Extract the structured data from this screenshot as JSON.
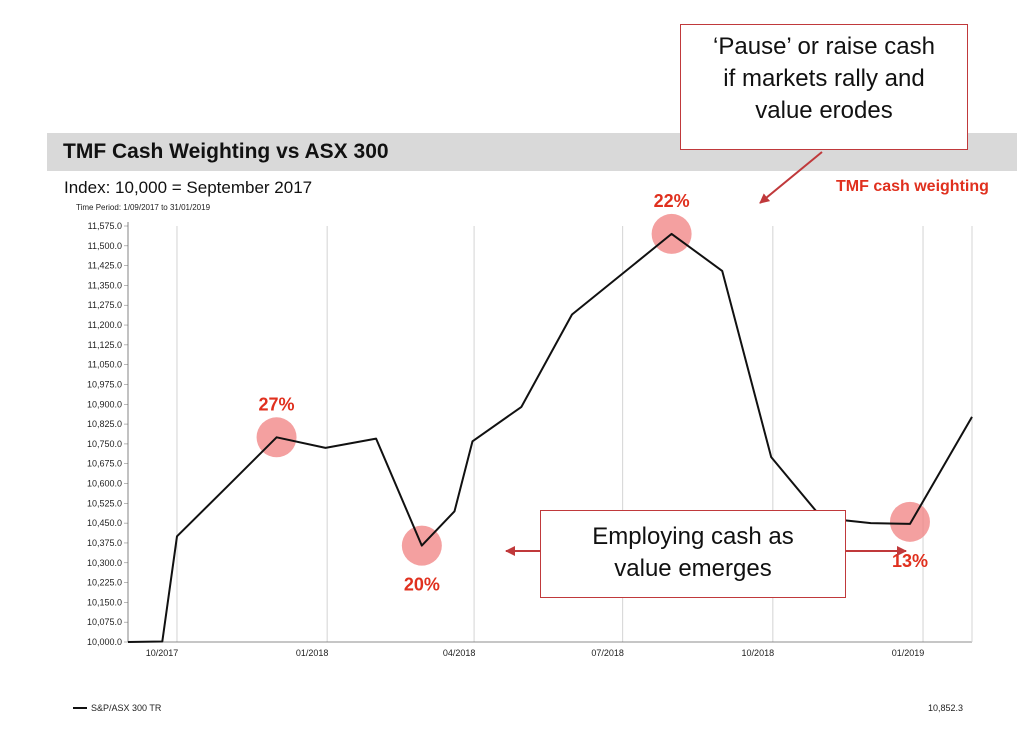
{
  "header": {
    "title": "TMF Cash Weighting vs ASX 300",
    "subtitle": "Index: 10,000 = September 2017",
    "series_label": "TMF cash weighting",
    "time_period": "Time Period: 1/09/2017 to 31/01/2019"
  },
  "callouts": {
    "top_lines": [
      "‘Pause’ or raise cash",
      "if markets rally and",
      "value erodes"
    ],
    "mid_lines": [
      "Employing cash as",
      "value emerges"
    ]
  },
  "legend": {
    "series_name": "S&P/ASX 300 TR",
    "last_value": "10,852.3"
  },
  "colors": {
    "line": "#111111",
    "accent": "#e0301e",
    "marker": "#f08080",
    "callout_border": "#c0393b",
    "title_bar": "#d9d9d9",
    "grid": "#d4d4d4"
  },
  "chart_data": {
    "type": "line",
    "title": "TMF Cash Weighting vs ASX 300",
    "ylim": [
      10000,
      11575
    ],
    "grid": true,
    "y_ticks": [
      "10,000.0",
      "10,075.0",
      "10,150.0",
      "10,225.0",
      "10,300.0",
      "10,375.0",
      "10,450.0",
      "10,525.0",
      "10,600.0",
      "10,675.0",
      "10,750.0",
      "10,825.0",
      "10,900.0",
      "10,975.0",
      "11,050.0",
      "11,125.0",
      "11,200.0",
      "11,275.0",
      "11,350.0",
      "11,425.0",
      "11,500.0",
      "11,575.0"
    ],
    "x_ticks": [
      {
        "label": "10/2017",
        "date": "2017-10-01"
      },
      {
        "label": "01/2018",
        "date": "2018-01-01"
      },
      {
        "label": "04/2018",
        "date": "2018-04-01"
      },
      {
        "label": "07/2018",
        "date": "2018-07-01"
      },
      {
        "label": "10/2018",
        "date": "2018-10-01"
      },
      {
        "label": "01/2019",
        "date": "2019-01-01"
      }
    ],
    "series": [
      {
        "name": "S&P/ASX 300 TR",
        "x": [
          "2017-09-01",
          "2017-09-22",
          "2017-10-01",
          "2017-11-01",
          "2017-12-01",
          "2017-12-31",
          "2018-01-31",
          "2018-02-28",
          "2018-03-20",
          "2018-03-31",
          "2018-04-30",
          "2018-05-31",
          "2018-06-30",
          "2018-07-31",
          "2018-08-31",
          "2018-09-30",
          "2018-10-31",
          "2018-11-30",
          "2018-12-24",
          "2019-01-31"
        ],
        "values": [
          10000,
          10002,
          10400,
          10590,
          10775,
          10735,
          10770,
          10365,
          10495,
          10760,
          10890,
          11240,
          11390,
          11545,
          11405,
          10700,
          10470,
          10450,
          10447,
          10852.3
        ]
      }
    ],
    "annotations": [
      {
        "label": "27%",
        "x": "2017-12-01",
        "y": 10775,
        "position": "above"
      },
      {
        "label": "20%",
        "x": "2018-02-28",
        "y": 10365,
        "position": "below"
      },
      {
        "label": "22%",
        "x": "2018-07-31",
        "y": 11545,
        "position": "above"
      },
      {
        "label": "13%",
        "x": "2018-12-24",
        "y": 10455,
        "position": "below"
      }
    ]
  }
}
